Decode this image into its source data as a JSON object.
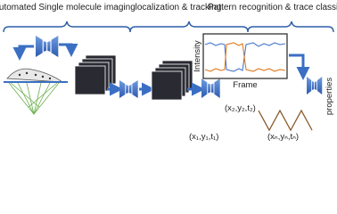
{
  "stages": [
    {
      "label": "Automated Single molecule imaging"
    },
    {
      "label": "localization & tracking"
    },
    {
      "label": "Pattern recognition & trace classification"
    }
  ],
  "plot": {
    "y_label": "Intensity",
    "x_label": "Frame"
  },
  "output": "properties",
  "points": [
    "(x₂,y₂,t₂)",
    "(x₁,y₁,t₁)",
    "(xₙ,yₙ,tₙ)"
  ]
}
